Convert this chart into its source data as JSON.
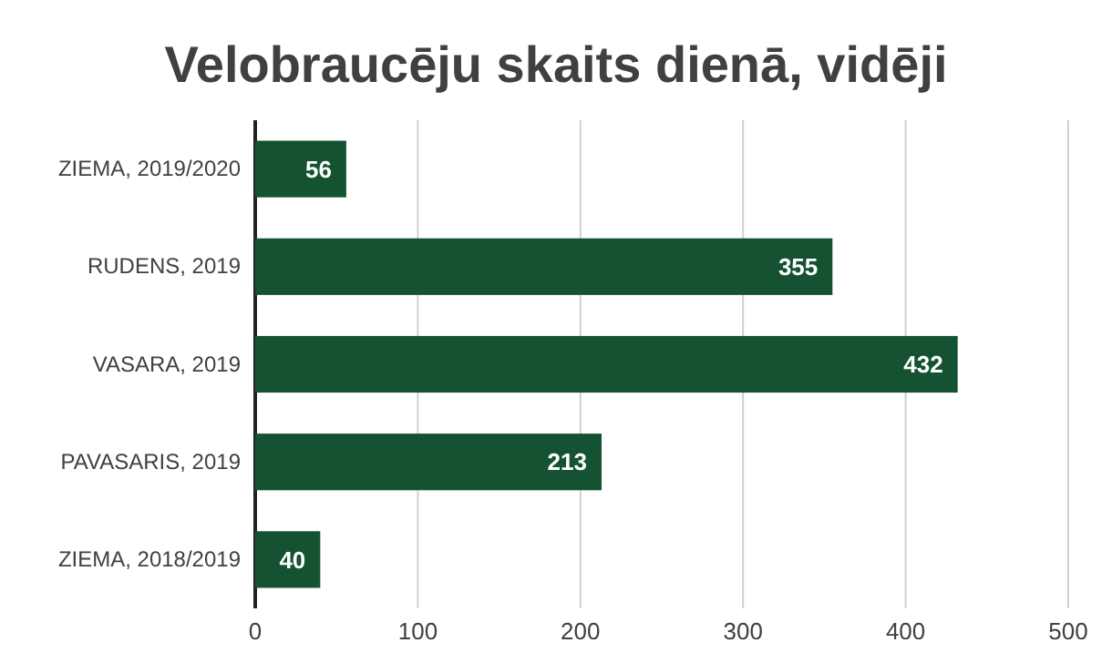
{
  "chart_data": {
    "type": "bar",
    "orientation": "horizontal",
    "title": "Velobraucēju skaits dienā, vidēji",
    "categories": [
      "ZIEMA, 2019/2020",
      "RUDENS, 2019",
      "VASARA, 2019",
      "PAVASARIS, 2019",
      "ZIEMA, 2018/2019"
    ],
    "values": [
      56,
      355,
      432,
      213,
      40
    ],
    "color": "#145232",
    "xlim": [
      0,
      500
    ],
    "xticks": [
      0,
      100,
      200,
      300,
      400,
      500
    ],
    "grid": "x",
    "data_labels": true
  }
}
